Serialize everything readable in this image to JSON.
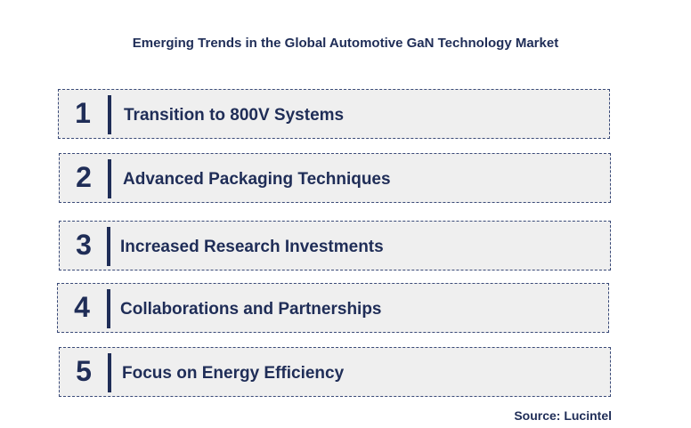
{
  "title": "Emerging Trends in the Global Automotive GaN Technology Market",
  "trends": [
    {
      "number": "1",
      "label": "Transition to 800V Systems"
    },
    {
      "number": "2",
      "label": "Advanced Packaging Techniques"
    },
    {
      "number": "3",
      "label": "Increased Research Investments"
    },
    {
      "number": "4",
      "label": "Collaborations and Partnerships"
    },
    {
      "number": "5",
      "label": "Focus on Energy Efficiency"
    }
  ],
  "source": "Source: Lucintel",
  "colors": {
    "text": "#1f2d57",
    "box_fill": "#efefef",
    "box_border": "#3a4a78"
  }
}
